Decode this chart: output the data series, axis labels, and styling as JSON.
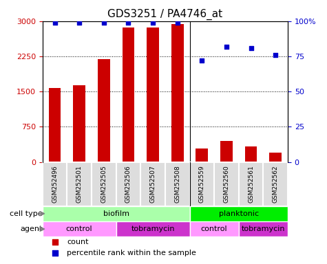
{
  "title": "GDS3251 / PA4746_at",
  "samples": [
    "GSM252496",
    "GSM252501",
    "GSM252505",
    "GSM252506",
    "GSM252507",
    "GSM252508",
    "GSM252559",
    "GSM252560",
    "GSM252561",
    "GSM252562"
  ],
  "counts": [
    1570,
    1630,
    2190,
    2860,
    2870,
    2940,
    290,
    450,
    330,
    200
  ],
  "percentile_ranks": [
    99,
    99,
    99,
    99,
    99,
    99,
    72,
    82,
    81,
    76
  ],
  "ylim_left": [
    0,
    3000
  ],
  "ylim_right": [
    0,
    100
  ],
  "yticks_left": [
    0,
    750,
    1500,
    2250,
    3000
  ],
  "yticks_right": [
    0,
    25,
    50,
    75,
    100
  ],
  "bar_color": "#cc0000",
  "dot_color": "#0000cc",
  "cell_types": [
    {
      "label": "biofilm",
      "start": 0,
      "end": 6,
      "color": "#aaffaa"
    },
    {
      "label": "planktonic",
      "start": 6,
      "end": 10,
      "color": "#00ee00"
    }
  ],
  "agents": [
    {
      "label": "control",
      "start": 0,
      "end": 3,
      "color": "#ff99ff"
    },
    {
      "label": "tobramycin",
      "start": 3,
      "end": 6,
      "color": "#cc33cc"
    },
    {
      "label": "control",
      "start": 6,
      "end": 8,
      "color": "#ff99ff"
    },
    {
      "label": "tobramycin",
      "start": 8,
      "end": 10,
      "color": "#cc33cc"
    }
  ],
  "legend_count_color": "#cc0000",
  "legend_dot_color": "#0000cc",
  "label_cell_type": "cell type",
  "label_agent": "agent",
  "tick_label_fontsize": 8,
  "bar_width": 0.5
}
